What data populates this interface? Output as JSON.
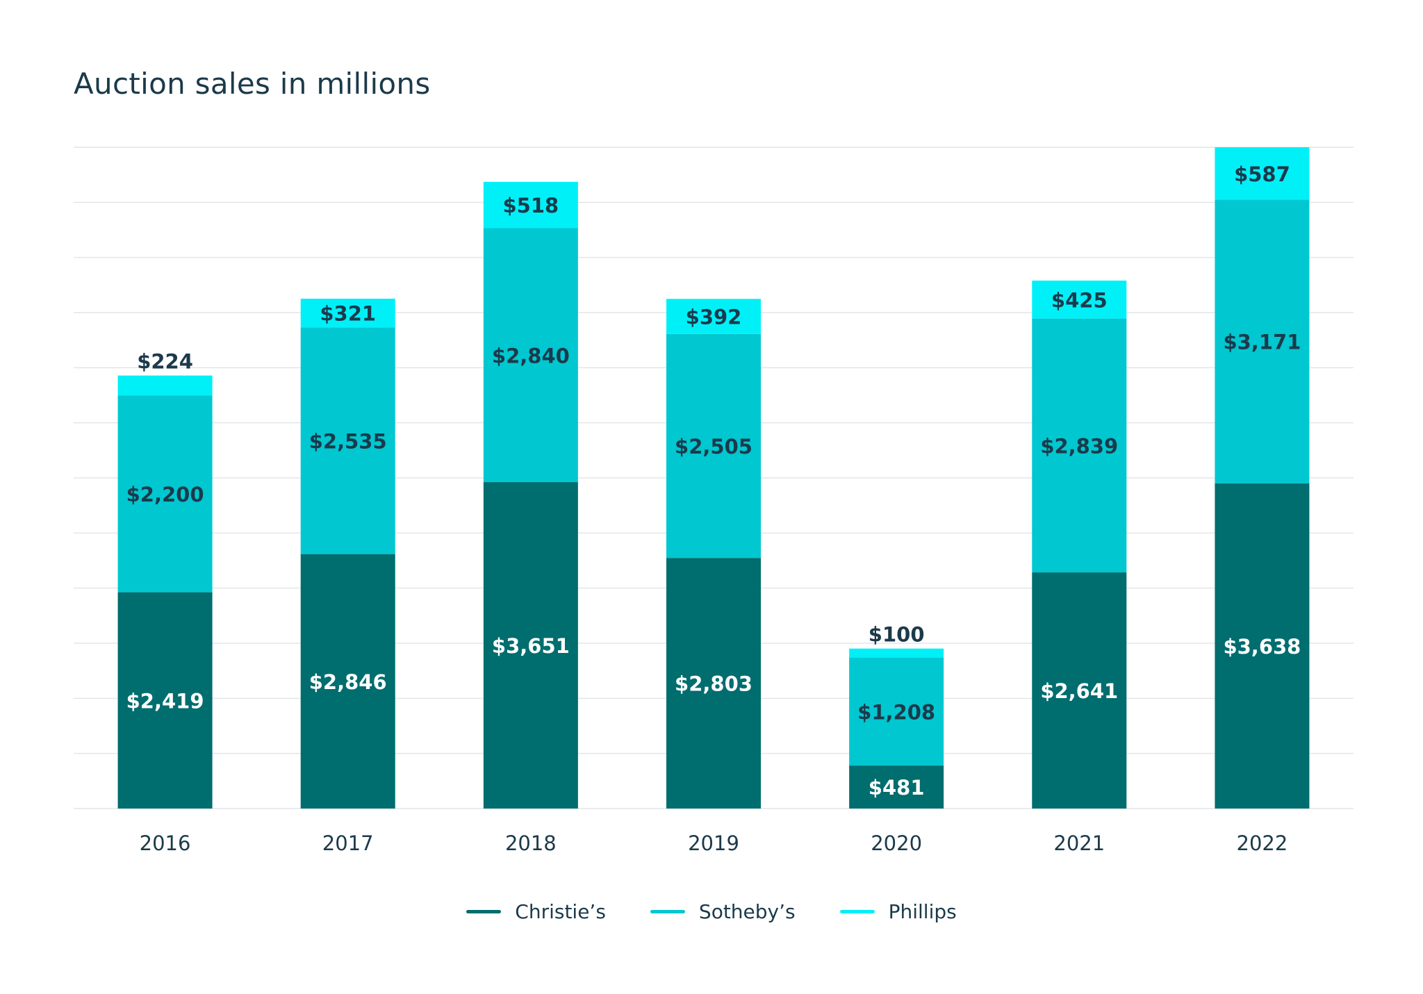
{
  "chart_data": {
    "type": "bar",
    "stacked": true,
    "title": "Auction sales in millions",
    "categories": [
      "2016",
      "2017",
      "2018",
      "2019",
      "2020",
      "2021",
      "2022"
    ],
    "series": [
      {
        "name": "Christie’s",
        "values": [
          2419,
          2846,
          3651,
          2803,
          481,
          2641,
          3638
        ],
        "labels": [
          "$2,419",
          "$2,846",
          "$3,651",
          "$2,803",
          "$481",
          "$2,641",
          "$3,638"
        ],
        "color": "#006d6f",
        "label_color": "#ffffff"
      },
      {
        "name": "Sotheby’s",
        "values": [
          2200,
          2535,
          2840,
          2505,
          1208,
          2839,
          3171
        ],
        "labels": [
          "$2,200",
          "$2,535",
          "$2,840",
          "$2,505",
          "$1,208",
          "$2,839",
          "$3,171"
        ],
        "color": "#00c7d0",
        "label_color": "#1b3a4b"
      },
      {
        "name": "Phillips",
        "values": [
          224,
          321,
          518,
          392,
          100,
          425,
          587
        ],
        "labels": [
          "$224",
          "$321",
          "$518",
          "$392",
          "$100",
          "$425",
          "$587"
        ],
        "color": "#00f0f8",
        "label_color": "#1b3a4b"
      }
    ],
    "ylim": [
      0,
      7396
    ],
    "grid": true,
    "legend": "bottom-center",
    "colors": {
      "grid": "#e2e6e8",
      "text": "#1b3a4b"
    }
  }
}
